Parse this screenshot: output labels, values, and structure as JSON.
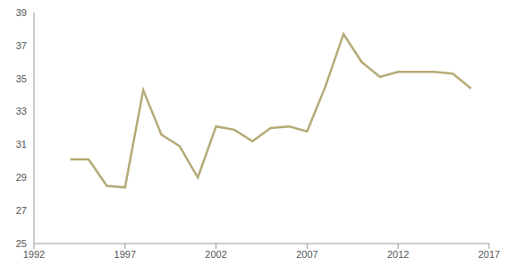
{
  "chart_data": {
    "type": "line",
    "x": [
      1994,
      1995,
      1996,
      1997,
      1998,
      1999,
      2000,
      2001,
      2002,
      2003,
      2004,
      2005,
      2006,
      2007,
      2008,
      2009,
      2010,
      2011,
      2012,
      2013,
      2014,
      2015,
      2016
    ],
    "values": [
      30.1,
      30.1,
      28.5,
      28.4,
      34.3,
      31.6,
      30.9,
      29.0,
      32.1,
      31.9,
      31.2,
      32.0,
      32.1,
      31.8,
      34.5,
      37.7,
      36.0,
      35.1,
      35.4,
      35.4,
      35.4,
      35.3,
      34.4
    ],
    "color": "#b4ab76",
    "xlim": [
      1992,
      2017
    ],
    "xticks": [
      1992,
      1997,
      2002,
      2007,
      2012,
      2017
    ],
    "ylim": [
      25,
      39
    ],
    "yticks": [
      25,
      27,
      29,
      31,
      33,
      35,
      37,
      39
    ],
    "grid": false
  }
}
